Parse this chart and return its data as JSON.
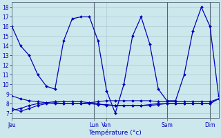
{
  "background_color": "#cce8ec",
  "grid_color": "#aaccd4",
  "line_color": "#0000bb",
  "xlabel": "Température (°c)",
  "ylim": [
    6.5,
    18.5
  ],
  "xlim": [
    0,
    48
  ],
  "yticks": [
    7,
    8,
    9,
    10,
    11,
    12,
    13,
    14,
    15,
    16,
    17,
    18
  ],
  "xtick_positions": [
    0,
    19,
    22,
    36,
    46
  ],
  "xtick_labels": [
    "Jeu",
    "Lun",
    "Ven",
    "Sam",
    "Dim"
  ],
  "vlines": [
    19,
    36,
    46
  ],
  "series1_x": [
    0,
    2,
    4,
    6,
    8,
    10,
    12,
    14,
    16,
    18,
    20,
    22,
    24,
    26,
    28,
    30,
    32,
    34,
    36,
    38,
    40,
    42,
    44,
    46,
    48
  ],
  "series1_y": [
    16,
    14,
    13,
    11,
    9.8,
    9.5,
    14.5,
    16.8,
    17,
    17,
    14.5,
    9.3,
    7.0,
    10,
    15,
    17,
    14.2,
    9.5,
    8.3,
    8.3,
    11,
    15.5,
    18,
    16,
    8.8
  ],
  "series2_x": [
    0,
    2,
    4,
    6,
    8,
    10,
    12,
    14,
    16,
    18,
    20,
    22,
    24,
    26,
    28,
    30,
    32,
    34,
    36,
    38,
    40,
    42,
    44,
    46,
    48
  ],
  "series2_y": [
    8.8,
    8.5,
    8.3,
    8.2,
    8.1,
    8.0,
    8.0,
    8.0,
    8.0,
    8.1,
    8.2,
    8.3,
    8.3,
    8.3,
    8.3,
    8.3,
    8.3,
    8.2,
    8.2,
    8.2,
    8.2,
    8.2,
    8.2,
    8.2,
    8.5
  ],
  "series3_x": [
    0,
    2,
    4,
    6,
    8,
    10,
    12,
    14,
    16,
    18,
    20,
    22,
    24,
    26,
    28,
    30,
    32,
    34,
    36,
    38,
    40,
    42,
    44,
    46,
    48
  ],
  "series3_y": [
    7.5,
    7.2,
    7.5,
    7.8,
    8.0,
    8.1,
    8.0,
    8.0,
    8.0,
    8.0,
    7.9,
    7.9,
    7.8,
    7.8,
    7.8,
    7.8,
    7.9,
    8.0,
    8.0,
    8.0,
    8.0,
    8.0,
    8.0,
    8.0,
    8.5
  ],
  "series4_x": [
    0,
    2,
    4,
    6,
    8,
    10,
    12,
    14,
    16,
    18,
    20,
    22,
    24,
    26,
    28,
    30,
    32,
    34,
    36,
    38,
    40,
    42,
    44,
    46,
    48
  ],
  "series4_y": [
    7.3,
    7.5,
    7.8,
    8.0,
    8.1,
    8.2,
    8.2,
    8.2,
    8.2,
    8.1,
    8.0,
    7.8,
    7.8,
    7.8,
    7.8,
    7.8,
    7.8,
    7.9,
    8.0,
    8.0,
    8.0,
    8.0,
    8.0,
    8.0,
    8.5
  ]
}
